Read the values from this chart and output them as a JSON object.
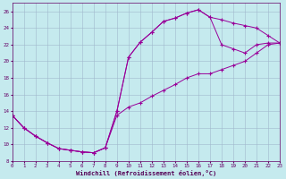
{
  "xlabel": "Windchill (Refroidissement éolien,°C)",
  "bg_color": "#c5eaee",
  "grid_color": "#a0b8cc",
  "line_color": "#990099",
  "xlim": [
    0,
    23
  ],
  "ylim": [
    8,
    27
  ],
  "yticks": [
    8,
    10,
    12,
    14,
    16,
    18,
    20,
    22,
    24,
    26
  ],
  "xticks": [
    0,
    1,
    2,
    3,
    4,
    5,
    6,
    7,
    8,
    9,
    10,
    11,
    12,
    13,
    14,
    15,
    16,
    17,
    18,
    19,
    20,
    21,
    22,
    23
  ],
  "lineA_x": [
    0,
    1,
    2,
    3,
    4,
    5,
    6,
    7,
    8,
    9,
    10,
    11,
    12,
    13,
    14,
    15,
    16,
    17,
    18,
    19,
    20,
    21,
    22,
    23
  ],
  "lineA_y": [
    13.5,
    12.0,
    11.0,
    10.2,
    9.5,
    9.3,
    9.1,
    9.0,
    9.6,
    14.0,
    20.5,
    22.3,
    23.5,
    24.8,
    25.2,
    25.8,
    26.2,
    25.3,
    25.0,
    24.6,
    24.3,
    24.0,
    23.1,
    22.2
  ],
  "lineB_x": [
    0,
    1,
    2,
    3,
    4,
    5,
    6,
    7,
    8,
    9,
    10,
    11,
    12,
    13,
    14,
    15,
    16,
    17,
    18,
    19,
    20,
    21,
    22,
    23
  ],
  "lineB_y": [
    13.5,
    12.0,
    11.0,
    10.2,
    9.5,
    9.3,
    9.1,
    9.0,
    9.6,
    14.0,
    20.5,
    22.3,
    23.5,
    24.8,
    25.2,
    25.8,
    26.2,
    25.3,
    22.0,
    21.5,
    21.0,
    22.0,
    22.2,
    22.2
  ],
  "lineC_x": [
    0,
    1,
    2,
    3,
    4,
    5,
    6,
    7,
    8,
    9,
    10,
    11,
    12,
    13,
    14,
    15,
    16,
    17,
    18,
    19,
    20,
    21,
    22,
    23
  ],
  "lineC_y": [
    13.5,
    12.0,
    11.0,
    10.2,
    9.5,
    9.3,
    9.1,
    9.0,
    9.6,
    13.5,
    14.5,
    15.0,
    15.8,
    16.5,
    17.2,
    18.0,
    18.5,
    18.5,
    19.0,
    19.5,
    20.0,
    21.0,
    22.0,
    22.2
  ]
}
